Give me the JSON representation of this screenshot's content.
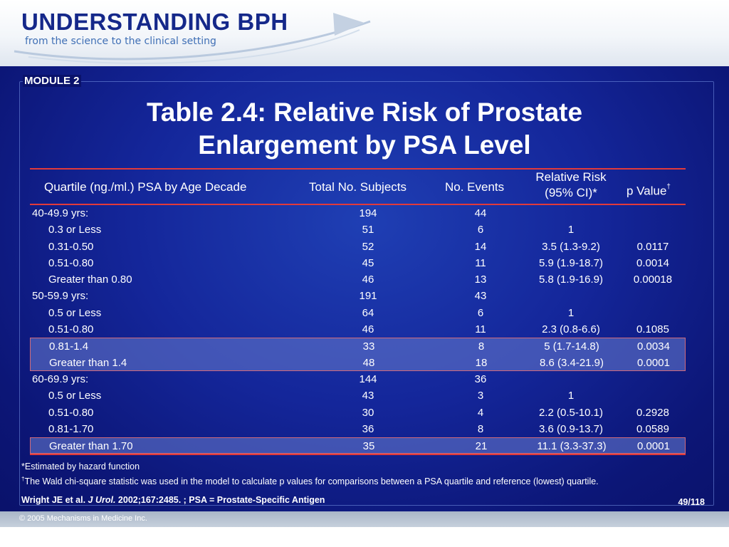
{
  "header": {
    "title": "UNDERSTANDING BPH",
    "subtitle": "from the science to the clinical setting"
  },
  "slide": {
    "module": "MODULE 2",
    "title_line1": "Table 2.4: Relative Risk of Prostate",
    "title_line2": "Enlargement by PSA Level"
  },
  "table": {
    "headers": {
      "quartile": "Quartile (ng./ml.) PSA by Age Decade",
      "total": "Total No. Subjects",
      "events": "No. Events",
      "rr_line1": "Relative Risk",
      "rr_line2": "(95% CI)*",
      "p": "p Value",
      "p_mark": "†"
    },
    "rows": [
      {
        "label": "40-49.9 yrs:",
        "total": "194",
        "events": "44",
        "rr": "",
        "p": ""
      },
      {
        "label": "0.3 or Less",
        "total": "51",
        "events": "6",
        "rr": "1",
        "p": ""
      },
      {
        "label": "0.31-0.50",
        "total": "52",
        "events": "14",
        "rr": "3.5 (1.3-9.2)",
        "p": "0.0117"
      },
      {
        "label": "0.51-0.80",
        "total": "45",
        "events": "11",
        "rr": "5.9 (1.9-18.7)",
        "p": "0.0014"
      },
      {
        "label": "Greater than 0.80",
        "total": "46",
        "events": "13",
        "rr": "5.8 (1.9-16.9)",
        "p": "0.00018"
      },
      {
        "label": "50-59.9 yrs:",
        "total": "191",
        "events": "43",
        "rr": "",
        "p": ""
      },
      {
        "label": "0.5 or Less",
        "total": "64",
        "events": "6",
        "rr": "1",
        "p": ""
      },
      {
        "label": "0.51-0.80",
        "total": "46",
        "events": "11",
        "rr": "2.3 (0.8-6.6)",
        "p": "0.1085"
      },
      {
        "label": "0.81-1.4",
        "total": "33",
        "events": "8",
        "rr": "5 (1.7-14.8)",
        "p": "0.0034"
      },
      {
        "label": "Greater than 1.4",
        "total": "48",
        "events": "18",
        "rr": "8.6 (3.4-21.9)",
        "p": "0.0001"
      },
      {
        "label": "60-69.9 yrs:",
        "total": "144",
        "events": "36",
        "rr": "",
        "p": ""
      },
      {
        "label": "0.5 or Less",
        "total": "43",
        "events": "3",
        "rr": "1",
        "p": ""
      },
      {
        "label": "0.51-0.80",
        "total": "30",
        "events": "4",
        "rr": "2.2 (0.5-10.1)",
        "p": "0.2928"
      },
      {
        "label": "0.81-1.70",
        "total": "36",
        "events": "8",
        "rr": "3.6 (0.9-13.7)",
        "p": "0.0589"
      },
      {
        "label": "Greater than 1.70",
        "total": "35",
        "events": "21",
        "rr": "11.1 (3.3-37.3)",
        "p": "0.0001"
      }
    ]
  },
  "footnotes": {
    "note1": "*Estimated by hazard function",
    "note2_mark": "†",
    "note2": "The Wald chi-square statistic was used in the model to calculate p values for comparisons between a PSA quartile and reference (lowest) quartile."
  },
  "citation": {
    "authors": "Wright JE et al. ",
    "journal": "J Urol.",
    "rest": " 2002;167:2485. ; PSA = Prostate-Specific Antigen"
  },
  "pager": "49/118",
  "copyright": "© 2005 Mechanisms in Medicine Inc.",
  "colors": {
    "slide_blue": "#14269a",
    "rule_red": "#e23a3a",
    "header_navy": "#15288a"
  }
}
